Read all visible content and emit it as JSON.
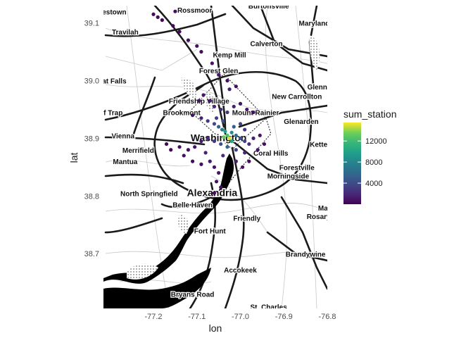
{
  "chart_data": {
    "type": "scatter",
    "xlabel": "lon",
    "ylabel": "lat",
    "xlim": [
      -77.315,
      -76.8
    ],
    "ylim": [
      38.605,
      39.13
    ],
    "x_ticks": [
      -77.2,
      -77.1,
      -77.0,
      -76.9,
      -76.8
    ],
    "x_tick_labels": [
      "-77.2",
      "-77.1",
      "-77.0",
      "-76.9",
      "-76.8"
    ],
    "y_ticks": [
      38.7,
      38.8,
      38.9,
      39.0,
      39.1
    ],
    "y_tick_labels": [
      "38.7",
      "38.8",
      "38.9",
      "39.0",
      "39.1"
    ],
    "grid": false,
    "background": "map-tiles-toner",
    "legend": {
      "title": "sum_station",
      "placement": "right",
      "colormap": "viridis",
      "range": [
        0,
        15500
      ],
      "breaks": [
        4000,
        8000,
        12000
      ],
      "break_labels": [
        "4000",
        "8000",
        "12000"
      ]
    },
    "points": [
      {
        "lon": -77.2,
        "lat": 39.115,
        "sum_station": 400
      },
      {
        "lon": -77.19,
        "lat": 39.11,
        "sum_station": 500
      },
      {
        "lon": -77.18,
        "lat": 39.105,
        "sum_station": 300
      },
      {
        "lon": -77.15,
        "lat": 39.12,
        "sum_station": 600
      },
      {
        "lon": -77.155,
        "lat": 39.095,
        "sum_station": 400
      },
      {
        "lon": -77.14,
        "lat": 39.085,
        "sum_station": 500
      },
      {
        "lon": -77.12,
        "lat": 39.07,
        "sum_station": 700
      },
      {
        "lon": -77.1,
        "lat": 39.06,
        "sum_station": 800
      },
      {
        "lon": -77.09,
        "lat": 39.05,
        "sum_station": 600
      },
      {
        "lon": -77.065,
        "lat": 39.03,
        "sum_station": 900
      },
      {
        "lon": -77.05,
        "lat": 39.01,
        "sum_station": 1100
      },
      {
        "lon": -77.03,
        "lat": 39.0,
        "sum_station": 700
      },
      {
        "lon": -77.01,
        "lat": 38.99,
        "sum_station": 600
      },
      {
        "lon": -77.025,
        "lat": 38.985,
        "sum_station": 1500
      },
      {
        "lon": -77.085,
        "lat": 38.975,
        "sum_station": 1100
      },
      {
        "lon": -77.095,
        "lat": 38.965,
        "sum_station": 900
      },
      {
        "lon": -77.07,
        "lat": 38.965,
        "sum_station": 1300
      },
      {
        "lon": -77.06,
        "lat": 38.955,
        "sum_station": 1800
      },
      {
        "lon": -77.045,
        "lat": 38.95,
        "sum_station": 2200
      },
      {
        "lon": -77.03,
        "lat": 38.945,
        "sum_station": 2600
      },
      {
        "lon": -77.015,
        "lat": 38.955,
        "sum_station": 1400
      },
      {
        "lon": -77.0,
        "lat": 38.96,
        "sum_station": 1000
      },
      {
        "lon": -76.985,
        "lat": 38.95,
        "sum_station": 900
      },
      {
        "lon": -76.97,
        "lat": 38.945,
        "sum_station": 700
      },
      {
        "lon": -77.11,
        "lat": 38.94,
        "sum_station": 800
      },
      {
        "lon": -77.09,
        "lat": 38.935,
        "sum_station": 1600
      },
      {
        "lon": -77.075,
        "lat": 38.93,
        "sum_station": 2800
      },
      {
        "lon": -77.06,
        "lat": 38.925,
        "sum_station": 3800
      },
      {
        "lon": -77.05,
        "lat": 38.92,
        "sum_station": 5200
      },
      {
        "lon": -77.042,
        "lat": 38.915,
        "sum_station": 7200
      },
      {
        "lon": -77.035,
        "lat": 38.912,
        "sum_station": 9800
      },
      {
        "lon": -77.03,
        "lat": 38.905,
        "sum_station": 12400
      },
      {
        "lon": -77.025,
        "lat": 38.9,
        "sum_station": 15000
      },
      {
        "lon": -77.02,
        "lat": 38.91,
        "sum_station": 8200
      },
      {
        "lon": -77.01,
        "lat": 38.905,
        "sum_station": 6400
      },
      {
        "lon": -77.0,
        "lat": 38.9,
        "sum_station": 4600
      },
      {
        "lon": -76.99,
        "lat": 38.895,
        "sum_station": 3200
      },
      {
        "lon": -76.98,
        "lat": 38.89,
        "sum_station": 2200
      },
      {
        "lon": -76.97,
        "lat": 38.9,
        "sum_station": 1500
      },
      {
        "lon": -76.955,
        "lat": 38.905,
        "sum_station": 900
      },
      {
        "lon": -76.945,
        "lat": 38.89,
        "sum_station": 700
      },
      {
        "lon": -76.96,
        "lat": 38.88,
        "sum_station": 1100
      },
      {
        "lon": -76.99,
        "lat": 38.875,
        "sum_station": 1800
      },
      {
        "lon": -77.01,
        "lat": 38.88,
        "sum_station": 3400
      },
      {
        "lon": -77.03,
        "lat": 38.885,
        "sum_station": 5600
      },
      {
        "lon": -77.045,
        "lat": 38.89,
        "sum_station": 4200
      },
      {
        "lon": -77.06,
        "lat": 38.895,
        "sum_station": 3000
      },
      {
        "lon": -77.075,
        "lat": 38.9,
        "sum_station": 2000
      },
      {
        "lon": -77.09,
        "lat": 38.895,
        "sum_station": 1300
      },
      {
        "lon": -77.105,
        "lat": 38.885,
        "sum_station": 900
      },
      {
        "lon": -77.12,
        "lat": 38.88,
        "sum_station": 700
      },
      {
        "lon": -77.14,
        "lat": 38.885,
        "sum_station": 500
      },
      {
        "lon": -77.16,
        "lat": 38.88,
        "sum_station": 400
      },
      {
        "lon": -77.17,
        "lat": 38.89,
        "sum_station": 300
      },
      {
        "lon": -77.13,
        "lat": 38.87,
        "sum_station": 800
      },
      {
        "lon": -77.11,
        "lat": 38.86,
        "sum_station": 600
      },
      {
        "lon": -77.09,
        "lat": 38.855,
        "sum_station": 700
      },
      {
        "lon": -77.07,
        "lat": 38.86,
        "sum_station": 1200
      },
      {
        "lon": -77.06,
        "lat": 38.85,
        "sum_station": 900
      },
      {
        "lon": -77.05,
        "lat": 38.84,
        "sum_station": 1000
      },
      {
        "lon": -77.055,
        "lat": 38.825,
        "sum_station": 800
      },
      {
        "lon": -77.045,
        "lat": 38.815,
        "sum_station": 700
      },
      {
        "lon": -77.06,
        "lat": 38.805,
        "sum_station": 500
      },
      {
        "lon": -77.01,
        "lat": 38.86,
        "sum_station": 1400
      },
      {
        "lon": -76.995,
        "lat": 38.85,
        "sum_station": 800
      },
      {
        "lon": -76.98,
        "lat": 38.86,
        "sum_station": 600
      },
      {
        "lon": -77.08,
        "lat": 38.875,
        "sum_station": 1700
      },
      {
        "lon": -77.04,
        "lat": 38.87,
        "sum_station": 2400
      },
      {
        "lon": -77.02,
        "lat": 38.895,
        "sum_station": 10600
      },
      {
        "lon": -77.038,
        "lat": 38.902,
        "sum_station": 13200
      },
      {
        "lon": -77.015,
        "lat": 38.92,
        "sum_station": 5000
      },
      {
        "lon": -77.0,
        "lat": 38.925,
        "sum_station": 3600
      },
      {
        "lon": -76.99,
        "lat": 38.915,
        "sum_station": 2800
      },
      {
        "lon": -77.055,
        "lat": 38.935,
        "sum_station": 3300
      },
      {
        "lon": -77.04,
        "lat": 38.93,
        "sum_station": 4400
      }
    ]
  },
  "map": {
    "place_names": [
      {
        "label": "Rossmoor",
        "lon": -77.105,
        "lat": 39.118
      },
      {
        "label": "Burtonsville",
        "lon": -76.935,
        "lat": 39.125
      },
      {
        "label": "estown",
        "lon": -77.29,
        "lat": 39.115
      },
      {
        "label": "Maryland",
        "lon": -76.83,
        "lat": 39.095
      },
      {
        "label": "Travilah",
        "lon": -77.265,
        "lat": 39.08
      },
      {
        "label": "Calverton",
        "lon": -76.94,
        "lat": 39.06
      },
      {
        "label": "Kemp Mill",
        "lon": -77.025,
        "lat": 39.04
      },
      {
        "label": "Forest Glen",
        "lon": -77.05,
        "lat": 39.013
      },
      {
        "label": "at Falls",
        "lon": -77.29,
        "lat": 38.995
      },
      {
        "label": "Glenn D",
        "lon": -76.815,
        "lat": 38.985
      },
      {
        "label": "New Carrollton",
        "lon": -76.87,
        "lat": 38.968
      },
      {
        "label": "Friendship Village",
        "lon": -77.095,
        "lat": 38.96
      },
      {
        "label": "lf Trap",
        "lon": -77.295,
        "lat": 38.94
      },
      {
        "label": "Brookmont",
        "lon": -77.135,
        "lat": 38.94
      },
      {
        "label": "Mount Rainier",
        "lon": -76.965,
        "lat": 38.94
      },
      {
        "label": "Glenarden",
        "lon": -76.86,
        "lat": 38.925
      },
      {
        "label": "Vienna",
        "lon": -77.27,
        "lat": 38.9
      },
      {
        "label": "Washington",
        "lon": -77.05,
        "lat": 38.895
      },
      {
        "label": "Kette",
        "lon": -76.82,
        "lat": 38.885
      },
      {
        "label": "Merrifield",
        "lon": -77.235,
        "lat": 38.875
      },
      {
        "label": "Coral Hills",
        "lon": -76.93,
        "lat": 38.87
      },
      {
        "label": "Mantua",
        "lon": -77.265,
        "lat": 38.855
      },
      {
        "label": "Forestville",
        "lon": -76.87,
        "lat": 38.845
      },
      {
        "label": "Morningside",
        "lon": -76.89,
        "lat": 38.83
      },
      {
        "label": "North Springfield",
        "lon": -77.21,
        "lat": 38.8
      },
      {
        "label": "Alexandria",
        "lon": -77.065,
        "lat": 38.8
      },
      {
        "label": "Belle Haven",
        "lon": -77.11,
        "lat": 38.78
      },
      {
        "label": "Ma",
        "lon": -76.81,
        "lat": 38.775
      },
      {
        "label": "Rosary",
        "lon": -76.82,
        "lat": 38.76
      },
      {
        "label": "Friendly",
        "lon": -76.985,
        "lat": 38.757
      },
      {
        "label": "Fort Hunt",
        "lon": -77.07,
        "lat": 38.735
      },
      {
        "label": "Brandywine",
        "lon": -76.85,
        "lat": 38.695
      },
      {
        "label": "Accokeek",
        "lon": -77.0,
        "lat": 38.667
      },
      {
        "label": "Bryans Road",
        "lon": -77.11,
        "lat": 38.625
      },
      {
        "label": "St. Charles",
        "lon": -76.935,
        "lat": 38.603
      }
    ]
  }
}
